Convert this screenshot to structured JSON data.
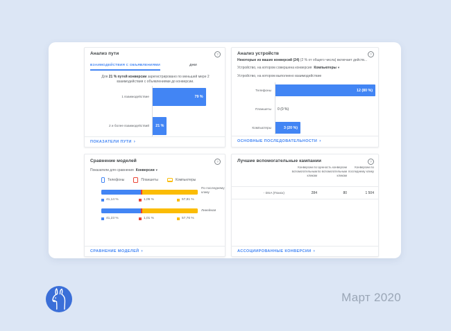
{
  "page": {
    "month_label": "Март 2020"
  },
  "icons": {
    "help": "?",
    "chevron_right": "›",
    "caret_down": "▾"
  },
  "colors": {
    "blue": "#4285f4",
    "red": "#ea4335",
    "yellow": "#fbbc04",
    "link": "#4285f4",
    "text": "#3c4043",
    "text2": "#5f6368",
    "border": "#e8eaed",
    "bg": "#dce6f5",
    "logo": "#3b6fd8",
    "month": "#9aa6b6"
  },
  "cards": {
    "path": {
      "title": "Анализ пути",
      "tabs": [
        {
          "label": "ВЗАИМОДЕЙСТВИЯ С ОБЪЯВЛЕНИЯМИ",
          "active": true
        },
        {
          "label": "ДНИ",
          "active": false
        }
      ],
      "desc_prefix": "Для ",
      "desc_bold": "21 % путей конверсии",
      "desc_rest": " зарегистрировано по меньшей мере 2 взаимодействия с объявлениями до конверсии.",
      "bars": [
        {
          "label": "1 взаимодействие",
          "value": "79 %",
          "pct": 79
        },
        {
          "label": "2 и более взаимодействий",
          "value": "21 %",
          "pct": 21
        }
      ],
      "footer_link": "ПОКАЗАТЕЛИ ПУТИ"
    },
    "devices": {
      "title": "Анализ устройств",
      "summary_bold": "Некоторые из ваших конверсий (24)",
      "summary_rest": " (2 % от общего числа) включает действ...",
      "filter_label": "Устройство, на котором совершена конверсия",
      "filter_value": "Компьютеры",
      "axis_label": "Устройство, на котором выполнено взаимодействие",
      "bars": [
        {
          "label": "Телефоны",
          "value": "12 (80 %)",
          "pct": 80
        },
        {
          "label": "Планшеты",
          "value": "0 (0 %)",
          "pct": 0
        },
        {
          "label": "Компьютеры",
          "value": "3 (20 %)",
          "pct": 20
        }
      ],
      "footer_link": "ОСНОВНЫЕ ПОСЛЕДОВАТЕЛЬНОСТИ"
    },
    "models": {
      "title": "Сравнение моделей",
      "metric_label": "Показатели для сравнения",
      "metric_value": "Конверсии",
      "legend": [
        {
          "label": "Телефоны",
          "color": "#4285f4"
        },
        {
          "label": "Планшеты",
          "color": "#ea4335"
        },
        {
          "label": "Компьютеры",
          "color": "#fbbc04"
        }
      ],
      "rows": [
        {
          "model": "По последнему клику",
          "values": [
            "41,14 %",
            "1,05 %",
            "57,81 %"
          ],
          "pcts": [
            41.14,
            1.05,
            57.81
          ]
        },
        {
          "model": "Линейная",
          "values": [
            "41,23 %",
            "1,01 %",
            "57,76 %"
          ],
          "pcts": [
            41.23,
            1.01,
            57.76
          ]
        }
      ],
      "footer_link": "СРАВНЕНИЕ МОДЕЛЕЙ"
    },
    "campaigns": {
      "title": "Лучшие вспомогательные кампании",
      "columns": [
        "Конверсии по вспомогательным кликам",
        "Ценность конверсии по вспомогательным кликам",
        "Конверсии по последнему клику"
      ],
      "rows": [
        {
          "name": "- DSA (Поиск)",
          "values": [
            "284",
            "80",
            "1 504"
          ]
        }
      ],
      "footer_link": "АССОЦИИРОВАННЫЕ КОНВЕРСИИ"
    }
  },
  "chart_data": [
    {
      "type": "bar",
      "title": "Анализ пути",
      "orientation": "horizontal",
      "categories": [
        "1 взаимодействие",
        "2 и более взаимодействий"
      ],
      "values": [
        79,
        21
      ],
      "unit": "%",
      "xlim": [
        0,
        100
      ]
    },
    {
      "type": "bar",
      "title": "Анализ устройств",
      "orientation": "horizontal",
      "categories": [
        "Телефоны",
        "Планшеты",
        "Компьютеры"
      ],
      "values": [
        12,
        0,
        3
      ],
      "data_labels": [
        "12 (80 %)",
        "0 (0 %)",
        "3 (20 %)"
      ]
    },
    {
      "type": "bar",
      "subtype": "stacked",
      "title": "Сравнение моделей",
      "categories": [
        "По последнему клику",
        "Линейная"
      ],
      "series": [
        {
          "name": "Телефоны",
          "values": [
            41.14,
            41.23
          ]
        },
        {
          "name": "Планшеты",
          "values": [
            1.05,
            1.01
          ]
        },
        {
          "name": "Компьютеры",
          "values": [
            57.81,
            57.76
          ]
        }
      ],
      "unit": "%",
      "legend_position": "top"
    },
    {
      "type": "table",
      "title": "Лучшие вспомогательные кампании",
      "columns": [
        "",
        "Конверсии по вспомогательным кликам",
        "Ценность конверсии по вспомогательным кликам",
        "Конверсии по последнему клику"
      ],
      "rows": [
        [
          "- DSA (Поиск)",
          "284",
          "80",
          "1 504"
        ]
      ]
    }
  ]
}
